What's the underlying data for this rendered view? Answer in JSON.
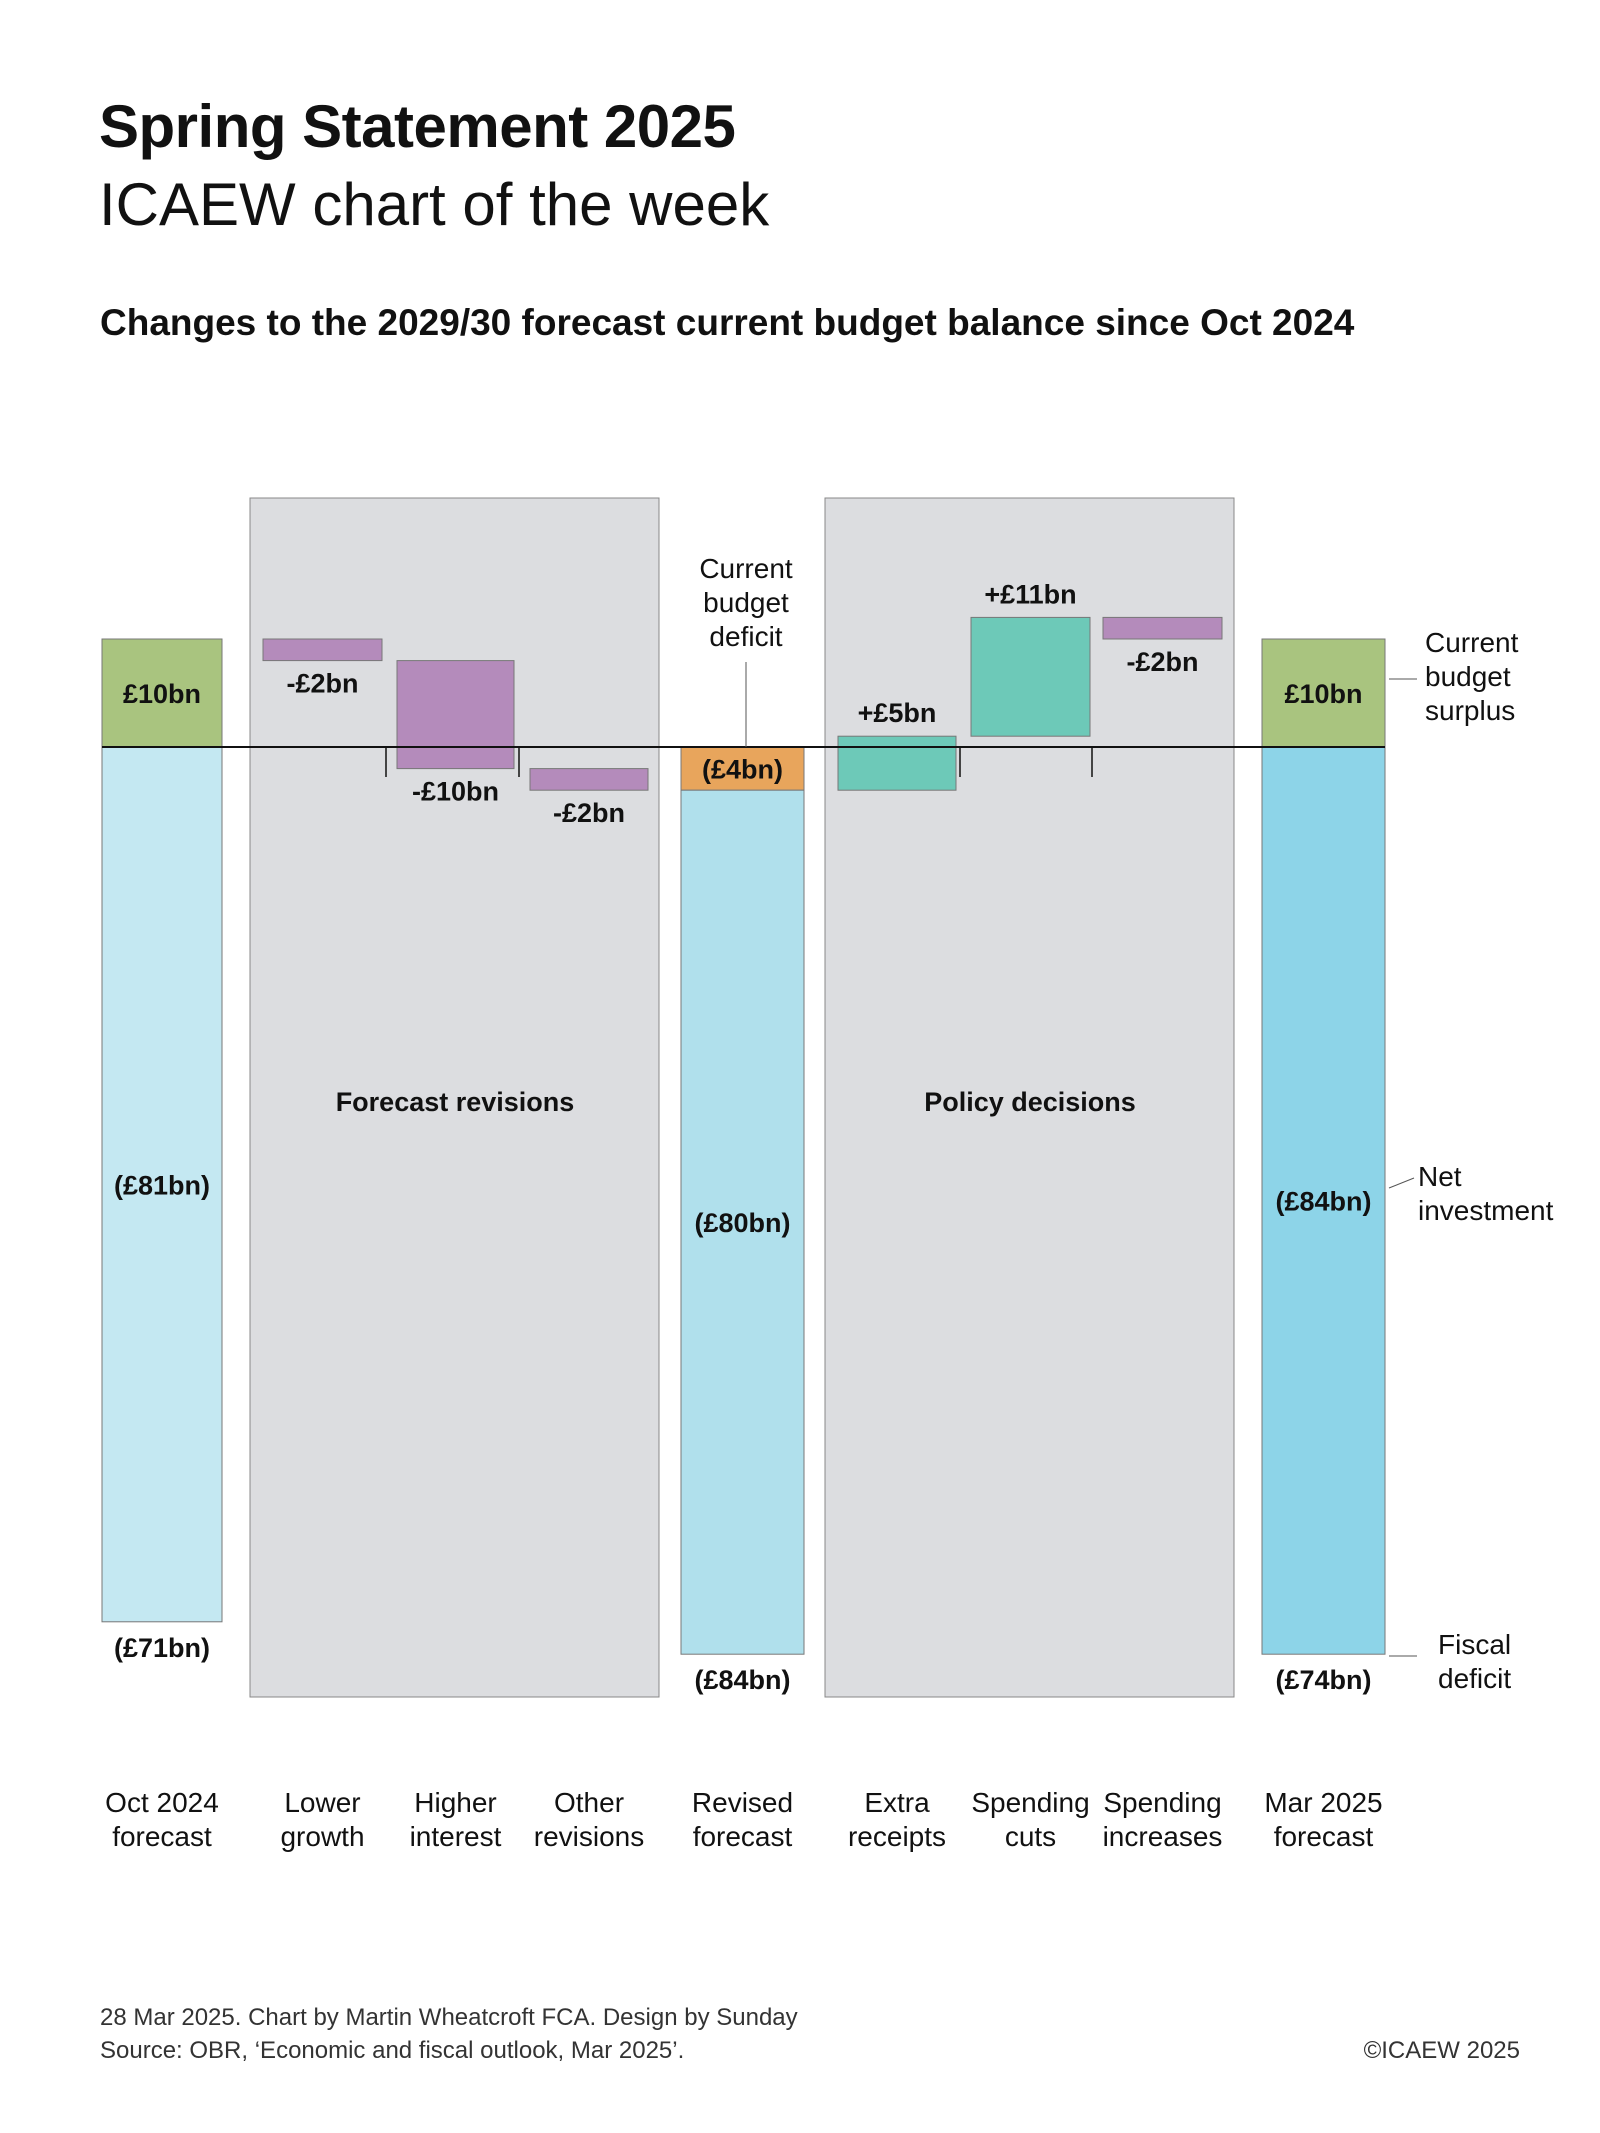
{
  "header": {
    "title": "Spring Statement 2025",
    "subtitle": "ICAEW chart of the week"
  },
  "chart_data": {
    "type": "waterfall",
    "title": "Changes to the 2029/30 forecast current budget balance since Oct 2024",
    "units": "£bn",
    "categories": [
      {
        "label": [
          "Oct 2024",
          "forecast"
        ],
        "kind": "total",
        "current_budget": 10,
        "net_investment": -81,
        "fiscal_balance": -71,
        "labels": {
          "current_budget": "£10bn",
          "net_investment": "(£81bn)",
          "fiscal_balance": "(£71bn)"
        }
      },
      {
        "label": [
          "Lower",
          "growth"
        ],
        "kind": "change",
        "value": -2,
        "text": "-£2bn",
        "group": "forecast"
      },
      {
        "label": [
          "Higher",
          "interest"
        ],
        "kind": "change",
        "value": -10,
        "text": "-£10bn",
        "group": "forecast"
      },
      {
        "label": [
          "Other",
          "revisions"
        ],
        "kind": "change",
        "value": -2,
        "text": "-£2bn",
        "group": "forecast"
      },
      {
        "label": [
          "Revised",
          "forecast"
        ],
        "kind": "total",
        "current_budget": -4,
        "net_investment": -80,
        "fiscal_balance": -84,
        "labels": {
          "current_budget": "(£4bn)",
          "net_investment": "(£80bn)",
          "fiscal_balance": "(£84bn)"
        }
      },
      {
        "label": [
          "Extra",
          "receipts"
        ],
        "kind": "change",
        "value": 5,
        "text": "+£5bn",
        "group": "policy"
      },
      {
        "label": [
          "Spending",
          "cuts"
        ],
        "kind": "change",
        "value": 11,
        "text": "+£11bn",
        "group": "policy"
      },
      {
        "label": [
          "Spending",
          "increases"
        ],
        "kind": "change",
        "value": -2,
        "text": "-£2bn",
        "group": "policy"
      },
      {
        "label": [
          "Mar 2025",
          "forecast"
        ],
        "kind": "total",
        "current_budget": 10,
        "net_investment": -84,
        "fiscal_balance": -74,
        "labels": {
          "current_budget": "£10bn",
          "net_investment": "(£84bn)",
          "fiscal_balance": "(£74bn)"
        }
      }
    ],
    "groups": {
      "forecast": "Forecast revisions",
      "policy": "Policy decisions"
    },
    "annotations": {
      "deficit": [
        "Current",
        "budget",
        "deficit"
      ],
      "surplus": [
        "Current",
        "budget",
        "surplus"
      ],
      "net_investment": [
        "Net",
        "investment"
      ],
      "fiscal_deficit": [
        "Fiscal",
        "deficit"
      ]
    },
    "colors": {
      "surplus": "#a9c47f",
      "deficit": "#e8a55c",
      "net_investment_oct": "#c4e8f2",
      "net_investment_revised": "#b0e0ec",
      "net_investment_mar": "#8dd4e8",
      "decrease": "#b48bbb",
      "increase": "#6dc9b8",
      "panel": "#dcdde0"
    }
  },
  "footer": {
    "credit": "28 Mar 2025.   Chart by Martin Wheatcroft FCA. Design by Sunday",
    "source": "Source: OBR, ‘Economic and fiscal outlook, Mar 2025’.",
    "copyright": "©ICAEW 2025"
  }
}
